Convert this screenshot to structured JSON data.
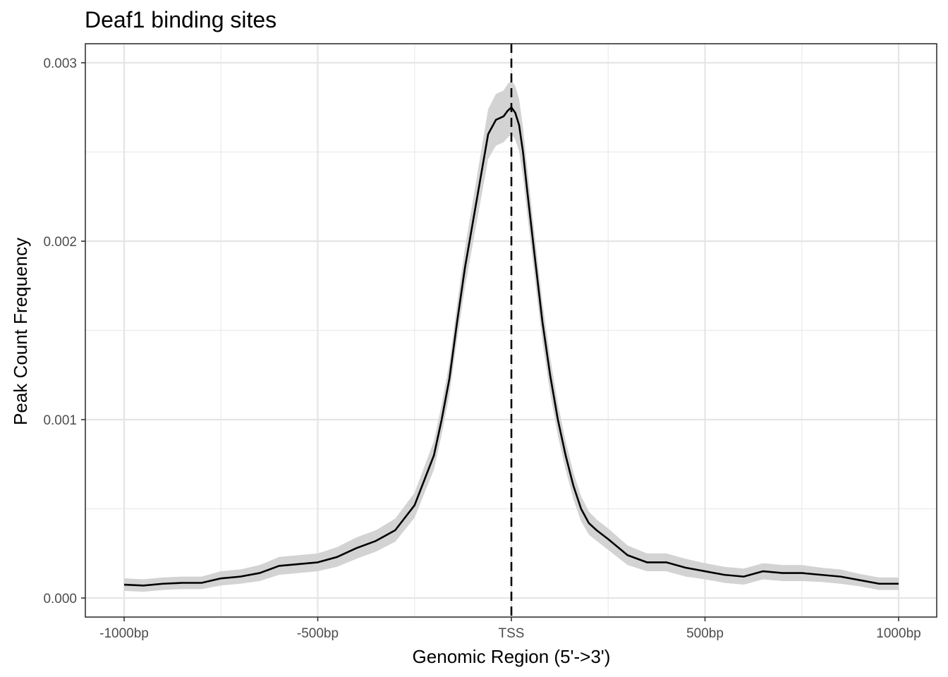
{
  "chart_data": {
    "type": "area",
    "title": "Deaf1 binding sites",
    "xlabel": "Genomic Region (5'->3')",
    "ylabel": "Peak Count Frequency",
    "xlim": [
      -1000,
      1000
    ],
    "ylim": [
      0,
      0.003
    ],
    "x_ticks": [
      {
        "value": -1000,
        "label": "-1000bp"
      },
      {
        "value": -500,
        "label": "-500bp"
      },
      {
        "value": 0,
        "label": "TSS"
      },
      {
        "value": 500,
        "label": "500bp"
      },
      {
        "value": 1000,
        "label": "1000bp"
      }
    ],
    "y_ticks": [
      {
        "value": 0,
        "label": "0.000"
      },
      {
        "value": 0.001,
        "label": "0.001"
      },
      {
        "value": 0.002,
        "label": "0.002"
      },
      {
        "value": 0.003,
        "label": "0.003"
      }
    ],
    "grid": true,
    "reference_line": {
      "x": 0,
      "style": "dashed"
    },
    "series": [
      {
        "style": "line-with-confidence-band",
        "color": "#000000",
        "band_color": "#d3d3d3",
        "x": [
          -1000,
          -950,
          -900,
          -850,
          -800,
          -750,
          -700,
          -650,
          -600,
          -550,
          -500,
          -450,
          -400,
          -350,
          -300,
          -250,
          -200,
          -180,
          -160,
          -140,
          -120,
          -100,
          -80,
          -60,
          -40,
          -20,
          -10,
          0,
          10,
          20,
          30,
          40,
          60,
          80,
          100,
          120,
          140,
          160,
          180,
          200,
          220,
          250,
          300,
          350,
          400,
          450,
          500,
          550,
          600,
          650,
          700,
          750,
          800,
          850,
          900,
          950,
          1000
        ],
        "y": [
          7.5e-05,
          7e-05,
          8e-05,
          8.5e-05,
          8.5e-05,
          0.00011,
          0.00012,
          0.00014,
          0.00018,
          0.00019,
          0.0002,
          0.00023,
          0.00028,
          0.00032,
          0.00038,
          0.00052,
          0.0008,
          0.001,
          0.00123,
          0.00155,
          0.00185,
          0.0021,
          0.00235,
          0.0026,
          0.00268,
          0.0027,
          0.00273,
          0.00275,
          0.00272,
          0.00265,
          0.0025,
          0.0023,
          0.00192,
          0.00155,
          0.00125,
          0.001,
          0.0008,
          0.00063,
          0.0005,
          0.00042,
          0.00038,
          0.00033,
          0.00024,
          0.0002,
          0.0002,
          0.00017,
          0.00015,
          0.00013,
          0.00012,
          0.00015,
          0.00014,
          0.00014,
          0.00013,
          0.00012,
          0.0001,
          8e-05,
          8e-05
        ],
        "band_halfwidth": [
          3.5e-05,
          3.5e-05,
          3.5e-05,
          3.5e-05,
          3.5e-05,
          4e-05,
          4e-05,
          4.5e-05,
          5e-05,
          5e-05,
          5e-05,
          5.5e-05,
          6e-05,
          6e-05,
          6.5e-05,
          7e-05,
          8e-05,
          8.5e-05,
          9e-05,
          0.0001,
          0.00011,
          0.00012,
          0.00013,
          0.00014,
          0.000145,
          0.000145,
          0.00015,
          0.00015,
          0.00015,
          0.000145,
          0.00014,
          0.00013,
          0.00012,
          0.00011,
          0.0001,
          9e-05,
          8e-05,
          7.5e-05,
          7e-05,
          6.5e-05,
          6e-05,
          6e-05,
          5.5e-05,
          5e-05,
          5e-05,
          5e-05,
          4.5e-05,
          4.5e-05,
          4.5e-05,
          4.5e-05,
          4.5e-05,
          4.5e-05,
          4e-05,
          4e-05,
          3.5e-05,
          3.5e-05,
          3.5e-05
        ]
      }
    ]
  }
}
